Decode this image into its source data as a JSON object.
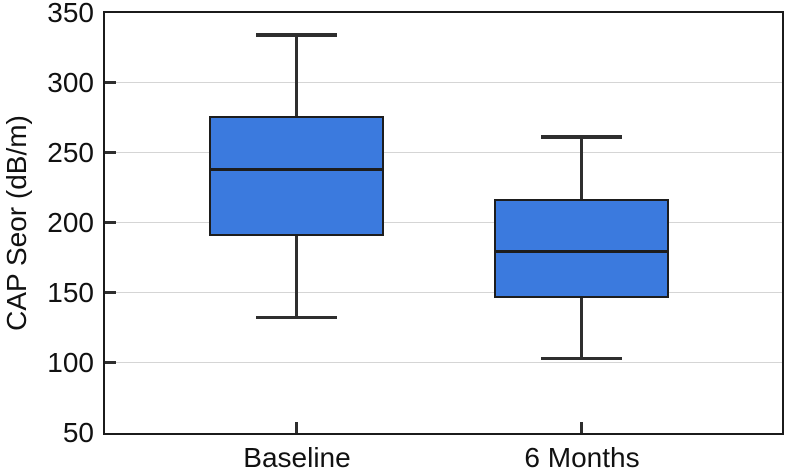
{
  "chart_data": {
    "type": "boxplot",
    "title": "",
    "xlabel": "",
    "ylabel": "CAP Seor (dB/m)",
    "categories": [
      "Baseline",
      "6 Months"
    ],
    "ylim": [
      50,
      350
    ],
    "yticks": [
      50,
      100,
      150,
      200,
      250,
      300,
      350
    ],
    "grid": true,
    "legend": "none",
    "series": [
      {
        "name": "Baseline",
        "whisker_low": 132,
        "q1": 190,
        "median": 238,
        "q3": 276,
        "whisker_high": 334
      },
      {
        "name": "6 Months",
        "whisker_low": 103,
        "q1": 146,
        "median": 179,
        "q3": 217,
        "whisker_high": 261
      }
    ],
    "colors": {
      "box_fill": "#3B7ADE",
      "box_border": "#1d1d1d",
      "median": "#1d1d1d",
      "whisker": "#2e2e2e",
      "gridline": "#d5d5d5",
      "frame": "#1b1b1b",
      "text": "#111111",
      "background": "#ffffff"
    }
  }
}
